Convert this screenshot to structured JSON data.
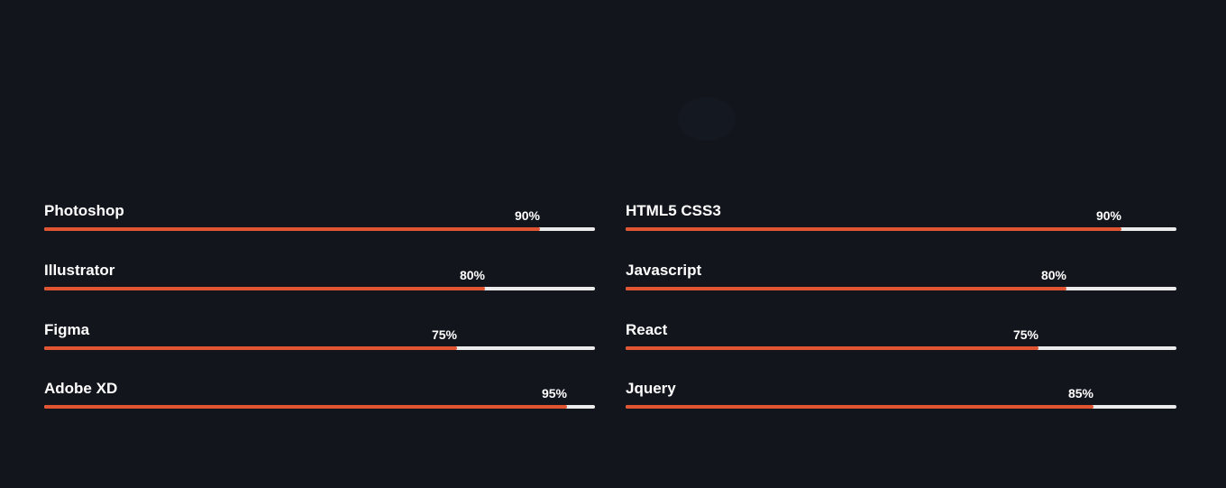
{
  "accent_color": "#e05432",
  "track_color": "#ebebeb",
  "background_color": "#12151c",
  "skills": {
    "left": [
      {
        "name": "Photoshop",
        "percent_label": "90%",
        "value": 90
      },
      {
        "name": "Illustrator",
        "percent_label": "80%",
        "value": 80
      },
      {
        "name": "Figma",
        "percent_label": "75%",
        "value": 75
      },
      {
        "name": "Adobe XD",
        "percent_label": "95%",
        "value": 95
      }
    ],
    "right": [
      {
        "name": "HTML5 CSS3",
        "percent_label": "90%",
        "value": 90
      },
      {
        "name": "Javascript",
        "percent_label": "80%",
        "value": 80
      },
      {
        "name": "React",
        "percent_label": "75%",
        "value": 75
      },
      {
        "name": "Jquery",
        "percent_label": "85%",
        "value": 85
      }
    ]
  }
}
